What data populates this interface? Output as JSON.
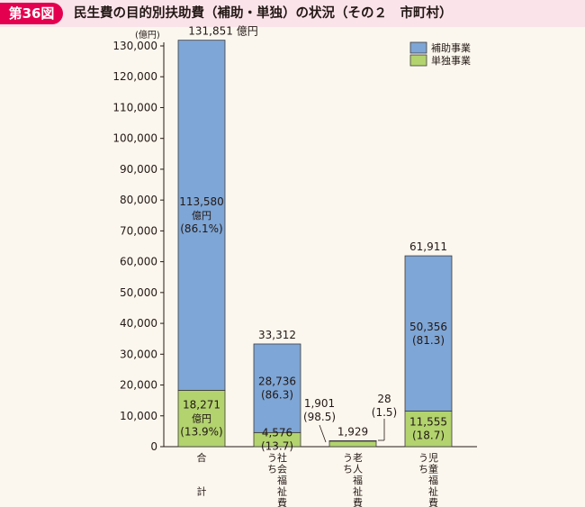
{
  "figure": {
    "number": "第36図",
    "title": "民生費の目的別扶助費（補助・単独）の状況（その２　市町村）"
  },
  "colors": {
    "subsidy": "#7ea6d6",
    "independent": "#b2d36e",
    "background": "#fcf7ee",
    "header_band": "#fbe3ea",
    "badge": "#e5004f"
  },
  "chart_data": {
    "type": "bar",
    "stacked": true,
    "unit_label": "(億円)",
    "ylim": [
      0,
      130000
    ],
    "yticks": [
      {
        "value": 0,
        "label": "0"
      },
      {
        "value": 10000,
        "label": "10,000"
      },
      {
        "value": 20000,
        "label": "20,000"
      },
      {
        "value": 30000,
        "label": "30,000"
      },
      {
        "value": 40000,
        "label": "40,000"
      },
      {
        "value": 50000,
        "label": "50,000"
      },
      {
        "value": 60000,
        "label": "60,000"
      },
      {
        "value": 70000,
        "label": "70,000"
      },
      {
        "value": 80000,
        "label": "80,000"
      },
      {
        "value": 90000,
        "label": "90,000"
      },
      {
        "value": 100000,
        "label": "100,000"
      },
      {
        "value": 110000,
        "label": "110,000"
      },
      {
        "value": 120000,
        "label": "120,000"
      },
      {
        "value": 130000,
        "label": "130,000"
      }
    ],
    "legend": [
      {
        "name": "補助事業",
        "color": "#7ea6d6"
      },
      {
        "name": "単独事業",
        "color": "#b2d36e"
      }
    ],
    "legend_position": "top-right",
    "categories": [
      {
        "label_lines": [
          "合",
          "",
          "",
          "計"
        ],
        "total": 131851,
        "total_label": "131,851 億円",
        "independent": 18271,
        "subsidy": 113580,
        "subsidy_label": [
          "113,580",
          "億円",
          "(86.1%)"
        ],
        "independent_label": [
          "18,271",
          "億円",
          "(13.9%)"
        ]
      },
      {
        "label_lines": [
          "う社",
          "ち会",
          "　福",
          "　祉",
          "　費"
        ],
        "total": 33312,
        "total_label": "33,312",
        "independent": 4576,
        "subsidy": 28736,
        "subsidy_label": [
          "28,736",
          "(86.3)"
        ],
        "independent_label": [
          "4,576",
          "(13.7)"
        ]
      },
      {
        "label_lines": [
          "う老",
          "ち人",
          "　福",
          "　祉",
          "　費"
        ],
        "total": 1929,
        "total_label": "1,929",
        "independent": 1901,
        "subsidy": 28,
        "subsidy_label": [
          "28",
          "(1.5)"
        ],
        "independent_label": [
          "1,901",
          "(98.5)"
        ]
      },
      {
        "label_lines": [
          "う児",
          "ち童",
          "　福",
          "　祉",
          "　費"
        ],
        "total": 61911,
        "total_label": "61,911",
        "independent": 11555,
        "subsidy": 50356,
        "subsidy_label": [
          "50,356",
          "(81.3)"
        ],
        "independent_label": [
          "11,555",
          "(18.7)"
        ]
      }
    ]
  }
}
